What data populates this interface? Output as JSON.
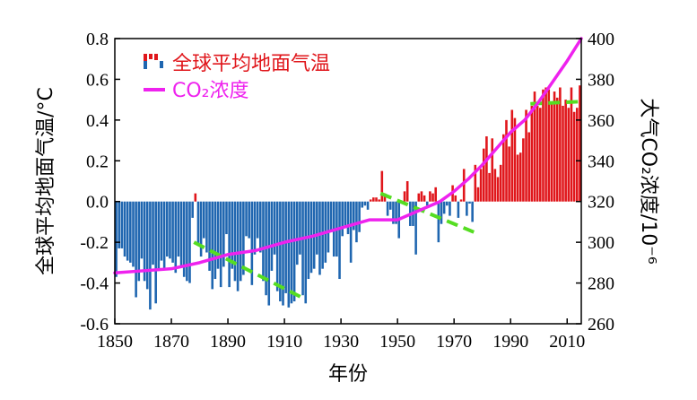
{
  "chart_data": {
    "type": "bar",
    "title": "",
    "xlabel": "年份",
    "ylabel_left": "全球平均地面气温/°C",
    "ylabel_right": "大气CO₂浓度/10⁻⁶",
    "xlim": [
      1850,
      2015
    ],
    "ylim_left": [
      -0.6,
      0.8
    ],
    "ylim_right": [
      260,
      400
    ],
    "x_ticks": [
      "1850",
      "1870",
      "1890",
      "1910",
      "1930",
      "1950",
      "1970",
      "1990",
      "2010"
    ],
    "y_ticks_left": [
      "0.8",
      "0.6",
      "0.4",
      "0.2",
      "0.0",
      "-0.2",
      "-0.4",
      "-0.6"
    ],
    "y_ticks_right": [
      "400",
      "380",
      "360",
      "340",
      "320",
      "300",
      "280",
      "260"
    ],
    "legend": {
      "placement": "top-left",
      "temperature_label": "全球平均地面气温",
      "co2_label": "CO₂浓度"
    },
    "colors": {
      "positive": "#e0161b",
      "negative": "#1f66b0",
      "co2": "#ee22ee",
      "trend": "#55dd22"
    },
    "series": [
      {
        "name": "全球平均地面气温",
        "kind": "bar",
        "x": [
          1850,
          1851,
          1852,
          1853,
          1854,
          1855,
          1856,
          1857,
          1858,
          1859,
          1860,
          1861,
          1862,
          1863,
          1864,
          1865,
          1866,
          1867,
          1868,
          1869,
          1870,
          1871,
          1872,
          1873,
          1874,
          1875,
          1876,
          1877,
          1878,
          1879,
          1880,
          1881,
          1882,
          1883,
          1884,
          1885,
          1886,
          1887,
          1888,
          1889,
          1890,
          1891,
          1892,
          1893,
          1894,
          1895,
          1896,
          1897,
          1898,
          1899,
          1900,
          1901,
          1902,
          1903,
          1904,
          1905,
          1906,
          1907,
          1908,
          1909,
          1910,
          1911,
          1912,
          1913,
          1914,
          1915,
          1916,
          1917,
          1918,
          1919,
          1920,
          1921,
          1922,
          1923,
          1924,
          1925,
          1926,
          1927,
          1928,
          1929,
          1930,
          1931,
          1932,
          1933,
          1934,
          1935,
          1936,
          1937,
          1938,
          1939,
          1940,
          1941,
          1942,
          1943,
          1944,
          1945,
          1946,
          1947,
          1948,
          1949,
          1950,
          1951,
          1952,
          1953,
          1954,
          1955,
          1956,
          1957,
          1958,
          1959,
          1960,
          1961,
          1962,
          1963,
          1964,
          1965,
          1966,
          1967,
          1968,
          1969,
          1970,
          1971,
          1972,
          1973,
          1974,
          1975,
          1976,
          1977,
          1978,
          1979,
          1980,
          1981,
          1982,
          1983,
          1984,
          1985,
          1986,
          1987,
          1988,
          1989,
          1990,
          1991,
          1992,
          1993,
          1994,
          1995,
          1996,
          1997,
          1998,
          1999,
          2000,
          2001,
          2002,
          2003,
          2004,
          2005,
          2006,
          2007,
          2008,
          2009,
          2010,
          2011,
          2012,
          2013,
          2014
        ],
        "values": [
          -0.37,
          -0.23,
          -0.23,
          -0.27,
          -0.29,
          -0.3,
          -0.32,
          -0.47,
          -0.39,
          -0.28,
          -0.39,
          -0.43,
          -0.53,
          -0.31,
          -0.5,
          -0.33,
          -0.29,
          -0.33,
          -0.27,
          -0.28,
          -0.3,
          -0.35,
          -0.27,
          -0.32,
          -0.37,
          -0.39,
          -0.4,
          -0.08,
          0.04,
          -0.21,
          -0.27,
          -0.18,
          -0.25,
          -0.34,
          -0.43,
          -0.38,
          -0.33,
          -0.42,
          -0.32,
          -0.16,
          -0.42,
          -0.33,
          -0.39,
          -0.44,
          -0.39,
          -0.36,
          -0.17,
          -0.18,
          -0.41,
          -0.26,
          -0.18,
          -0.25,
          -0.39,
          -0.46,
          -0.51,
          -0.34,
          -0.26,
          -0.44,
          -0.49,
          -0.51,
          -0.45,
          -0.52,
          -0.5,
          -0.49,
          -0.31,
          -0.26,
          -0.46,
          -0.5,
          -0.38,
          -0.35,
          -0.33,
          -0.26,
          -0.36,
          -0.33,
          -0.3,
          -0.25,
          -0.15,
          -0.27,
          -0.27,
          -0.38,
          -0.17,
          -0.12,
          -0.16,
          -0.3,
          -0.14,
          -0.2,
          -0.15,
          -0.03,
          -0.02,
          -0.04,
          0.01,
          0.02,
          0.02,
          0.01,
          0.15,
          0.04,
          -0.07,
          -0.04,
          -0.11,
          -0.11,
          -0.18,
          -0.01,
          0.05,
          0.1,
          -0.12,
          -0.12,
          -0.26,
          0.04,
          0.05,
          0.03,
          -0.02,
          0.05,
          0.04,
          0.07,
          -0.2,
          -0.11,
          -0.06,
          -0.02,
          -0.07,
          0.08,
          0.03,
          -0.08,
          0.01,
          0.16,
          -0.07,
          -0.01,
          -0.1,
          0.18,
          0.07,
          0.16,
          0.26,
          0.32,
          0.14,
          0.31,
          0.16,
          0.12,
          0.18,
          0.33,
          0.4,
          0.27,
          0.45,
          0.41,
          0.23,
          0.24,
          0.31,
          0.45,
          0.34,
          0.47,
          0.54,
          0.47,
          0.46,
          0.55,
          0.56,
          0.55,
          0.48,
          0.54,
          0.51,
          0.56,
          0.47,
          0.5,
          0.46,
          0.56,
          0.44,
          0.46,
          0.57
        ]
      },
      {
        "name": "CO₂浓度",
        "kind": "line",
        "x": [
          1850,
          1860,
          1870,
          1880,
          1890,
          1900,
          1910,
          1920,
          1930,
          1940,
          1950,
          1960,
          1965,
          1970,
          1975,
          1980,
          1985,
          1990,
          1995,
          2000,
          2005,
          2010,
          2015
        ],
        "values": [
          285,
          286,
          287,
          290,
          294,
          296,
          300,
          303,
          307,
          311,
          311,
          317,
          320,
          325,
          331,
          338,
          346,
          354,
          360,
          369,
          379,
          389,
          400
        ]
      },
      {
        "name": "",
        "kind": "trend",
        "segments": [
          {
            "x": [
              1878,
              1916
            ],
            "y": [
              -0.2,
              -0.47
            ]
          },
          {
            "x": [
              1944,
              1977
            ],
            "y": [
              0.04,
              -0.15
            ]
          },
          {
            "x": [
              1997,
              2014
            ],
            "y": [
              0.48,
              0.49
            ]
          }
        ]
      }
    ]
  }
}
